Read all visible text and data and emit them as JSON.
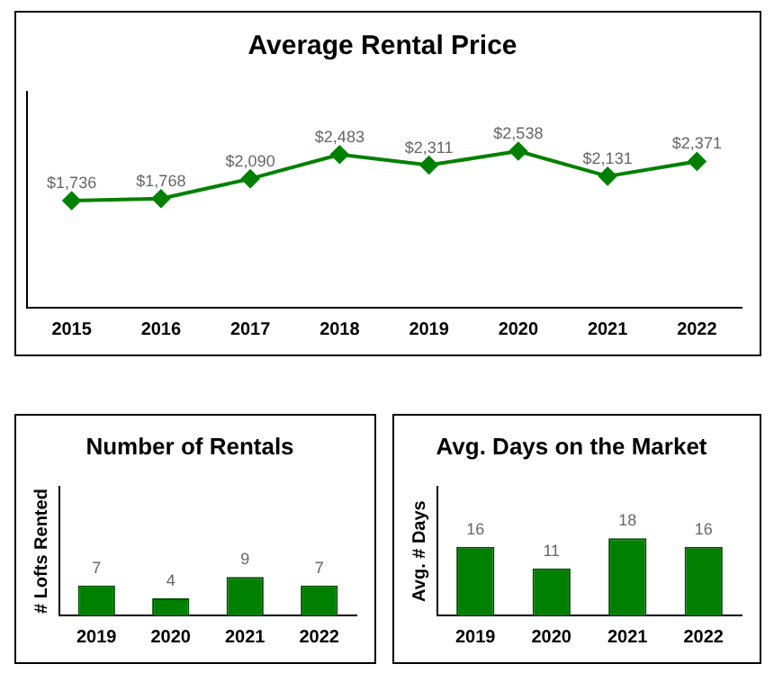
{
  "chart_data": [
    {
      "type": "line",
      "title": "Average Rental Price",
      "categories": [
        "2015",
        "2016",
        "2017",
        "2018",
        "2019",
        "2020",
        "2021",
        "2022"
      ],
      "series": [
        {
          "color": "#008000",
          "values": [
            1736,
            1768,
            2090,
            2483,
            2311,
            2538,
            2131,
            2371
          ],
          "value_labels": [
            "$1,736",
            "$1,768",
            "$2,090",
            "$2,483",
            "$2,311",
            "$2,538",
            "$2,131",
            "$2,371"
          ]
        }
      ],
      "ylim": [
        0,
        3500
      ],
      "tick_labels": "x",
      "marker": "diamond",
      "grid": false,
      "legend": false
    },
    {
      "type": "bar",
      "title": "Number of Rentals",
      "ylabel": "# Lofts Rented",
      "categories": [
        "2019",
        "2020",
        "2021",
        "2022"
      ],
      "series": [
        {
          "color": "#008000",
          "values": [
            7,
            4,
            9,
            7
          ]
        }
      ],
      "ylim": [
        0,
        30
      ],
      "tick_labels": "x",
      "data_labels": true,
      "grid": false,
      "legend": false
    },
    {
      "type": "bar",
      "title": "Avg. Days on the Market",
      "ylabel": "Avg. # Days",
      "categories": [
        "2019",
        "2020",
        "2021",
        "2022"
      ],
      "series": [
        {
          "color": "#008000",
          "values": [
            16,
            11,
            18,
            16
          ]
        }
      ],
      "ylim": [
        0,
        30
      ],
      "tick_labels": "x",
      "data_labels": true,
      "grid": false,
      "legend": false
    }
  ]
}
